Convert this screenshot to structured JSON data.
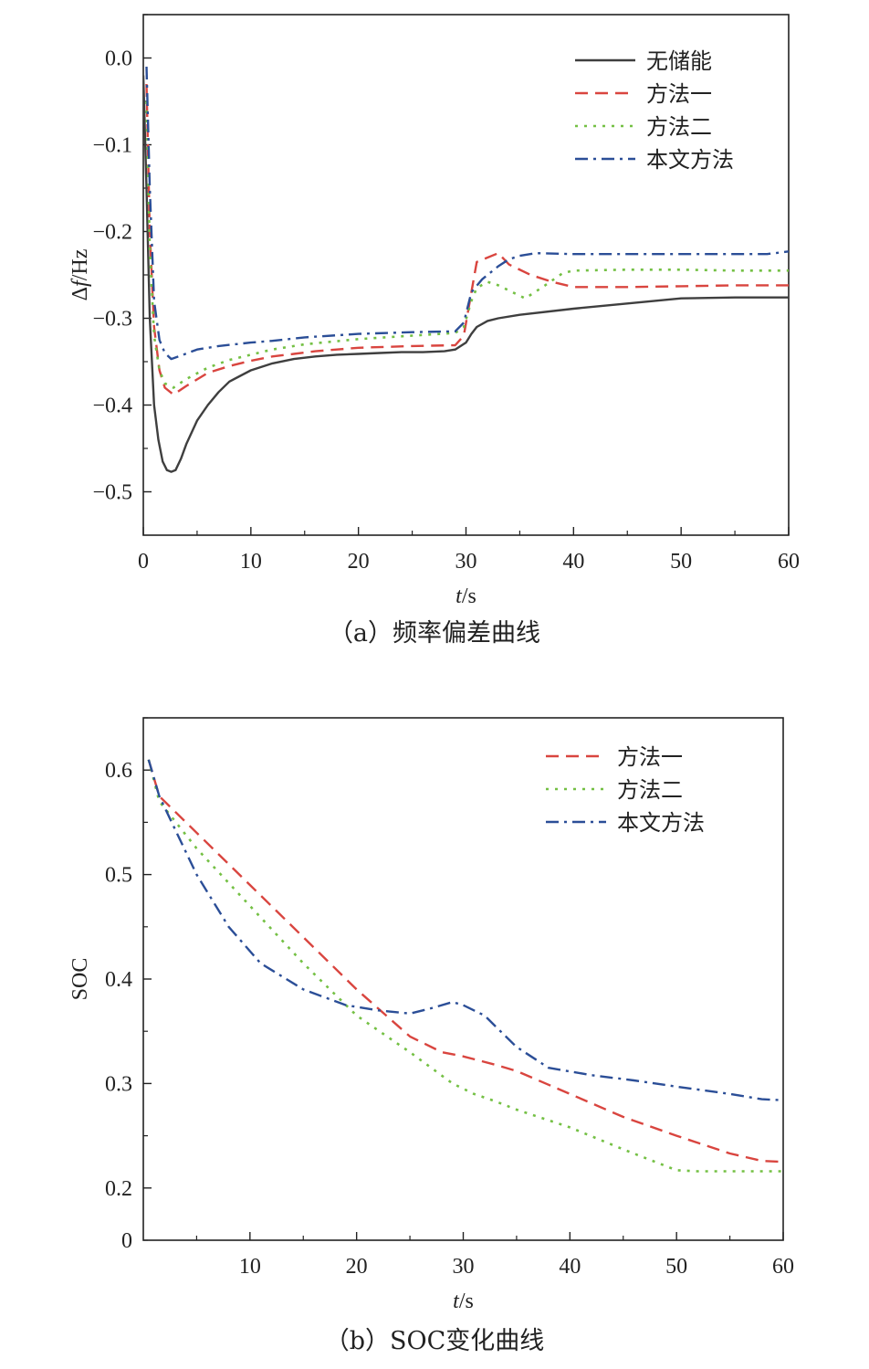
{
  "chart_data": [
    {
      "type": "line",
      "caption": "（a）频率偏差曲线",
      "xlabel_italic": "t",
      "xlabel_unit": "/s",
      "ylabel_prefix": "Δ",
      "ylabel_italic": "f",
      "ylabel_unit": "/Hz",
      "xlim": [
        0,
        60
      ],
      "ylim": [
        -0.55,
        0.05
      ],
      "xticks": [
        0,
        10,
        20,
        30,
        40,
        50,
        60
      ],
      "xtick_labels": [
        "0",
        "10",
        "20",
        "30",
        "40",
        "50",
        "60"
      ],
      "yticks": [
        0.0,
        -0.1,
        -0.2,
        -0.3,
        -0.4,
        -0.5
      ],
      "ytick_labels": [
        "0.0",
        "−0.1",
        "−0.2",
        "−0.3",
        "−0.4",
        "−0.5"
      ],
      "grid": false,
      "legend_position": "top-right",
      "series": [
        {
          "name": "无储能",
          "color": "#3f3f3f",
          "style": "solid",
          "x": [
            0,
            0.3,
            0.6,
            1.0,
            1.4,
            1.8,
            2.2,
            2.6,
            3.0,
            3.5,
            4.0,
            5.0,
            6.0,
            7.0,
            8.0,
            10.0,
            12.0,
            14.0,
            16.0,
            18.0,
            20.0,
            22.0,
            24.0,
            26.0,
            28.0,
            29.0,
            30.0,
            30.5,
            31.0,
            32.0,
            33.0,
            35.0,
            40.0,
            45.0,
            50.0,
            55.0,
            60.0
          ],
          "y": [
            -0.02,
            -0.15,
            -0.3,
            -0.4,
            -0.44,
            -0.465,
            -0.475,
            -0.477,
            -0.475,
            -0.462,
            -0.445,
            -0.418,
            -0.4,
            -0.385,
            -0.373,
            -0.36,
            -0.352,
            -0.347,
            -0.344,
            -0.342,
            -0.341,
            -0.34,
            -0.339,
            -0.339,
            -0.338,
            -0.336,
            -0.328,
            -0.318,
            -0.31,
            -0.303,
            -0.3,
            -0.296,
            -0.289,
            -0.283,
            -0.277,
            -0.276,
            -0.276
          ]
        },
        {
          "name": "方法一",
          "color": "#d9453f",
          "style": "dashed",
          "x": [
            0.3,
            0.6,
            1.0,
            1.5,
            2.0,
            2.8,
            4.0,
            6.0,
            8.0,
            10.0,
            12.0,
            14.0,
            16.0,
            18.0,
            20.0,
            25.0,
            29.0,
            29.8,
            30.5,
            31.0,
            33.0,
            34.0,
            36.0,
            38.0,
            40.0,
            45.0,
            50.0,
            55.0,
            60.0
          ],
          "y": [
            -0.03,
            -0.2,
            -0.31,
            -0.36,
            -0.38,
            -0.388,
            -0.378,
            -0.363,
            -0.355,
            -0.349,
            -0.344,
            -0.341,
            -0.338,
            -0.336,
            -0.334,
            -0.332,
            -0.331,
            -0.32,
            -0.27,
            -0.235,
            -0.225,
            -0.238,
            -0.25,
            -0.258,
            -0.264,
            -0.264,
            -0.263,
            -0.262,
            -0.262
          ]
        },
        {
          "name": "方法二",
          "color": "#74c044",
          "style": "dotted",
          "x": [
            0.3,
            0.6,
            1.0,
            1.5,
            2.0,
            2.8,
            4.0,
            6.0,
            8.0,
            10.0,
            12.0,
            15.0,
            20.0,
            25.0,
            29.0,
            29.8,
            30.5,
            31.0,
            32.0,
            33.0,
            35.5,
            37.0,
            39.0,
            40.0,
            45.0,
            50.0,
            55.0,
            60.0
          ],
          "y": [
            -0.05,
            -0.22,
            -0.32,
            -0.36,
            -0.375,
            -0.38,
            -0.37,
            -0.357,
            -0.348,
            -0.342,
            -0.336,
            -0.33,
            -0.324,
            -0.32,
            -0.317,
            -0.31,
            -0.28,
            -0.265,
            -0.258,
            -0.262,
            -0.277,
            -0.265,
            -0.248,
            -0.245,
            -0.244,
            -0.244,
            -0.245,
            -0.245
          ]
        },
        {
          "name": "本文方法",
          "color": "#2b4e97",
          "style": "dashdot",
          "x": [
            0.3,
            0.6,
            1.0,
            1.5,
            2.0,
            2.6,
            3.5,
            5.0,
            7.0,
            10.0,
            12.0,
            15.0,
            20.0,
            25.0,
            29.0,
            29.8,
            30.5,
            31.5,
            33.0,
            34.0,
            35.0,
            36.5,
            40.0,
            45.0,
            50.0,
            55.0,
            58.0,
            60.0
          ],
          "y": [
            -0.01,
            -0.15,
            -0.28,
            -0.325,
            -0.34,
            -0.347,
            -0.343,
            -0.336,
            -0.332,
            -0.328,
            -0.326,
            -0.322,
            -0.318,
            -0.316,
            -0.315,
            -0.305,
            -0.27,
            -0.255,
            -0.24,
            -0.232,
            -0.228,
            -0.225,
            -0.226,
            -0.226,
            -0.226,
            -0.226,
            -0.226,
            -0.223
          ]
        }
      ]
    },
    {
      "type": "line",
      "caption": "（b）SOC变化曲线",
      "xlabel_italic": "t",
      "xlabel_unit": "/s",
      "ylabel": "SOC",
      "xlim": [
        0,
        60
      ],
      "ylim": [
        0.15,
        0.65
      ],
      "xticks": [
        10,
        20,
        30,
        40,
        50,
        60
      ],
      "xtick_labels": [
        "10",
        "20",
        "30",
        "40",
        "50",
        "60"
      ],
      "yticks": [
        0.6,
        0.5,
        0.4,
        0.3,
        0.2
      ],
      "ytick_labels": [
        "0.6",
        "0.5",
        "0.4",
        "0.3",
        "0.2"
      ],
      "origin_label": "0",
      "grid": false,
      "legend_position": "top-right",
      "series": [
        {
          "name": "方法一",
          "color": "#d9453f",
          "style": "dashed",
          "x": [
            0.5,
            1.5,
            5,
            10,
            15,
            20,
            25,
            28,
            30,
            33,
            35,
            40,
            45,
            50,
            55,
            58,
            60
          ],
          "y": [
            0.61,
            0.575,
            0.54,
            0.49,
            0.44,
            0.39,
            0.345,
            0.33,
            0.326,
            0.318,
            0.312,
            0.29,
            0.268,
            0.25,
            0.233,
            0.226,
            0.225
          ]
        },
        {
          "name": "方法二",
          "color": "#74c044",
          "style": "dotted",
          "x": [
            0.5,
            1.5,
            5,
            10,
            15,
            20,
            25,
            29,
            31,
            33,
            35,
            40,
            45,
            50,
            52,
            55,
            58,
            60
          ],
          "y": [
            0.61,
            0.57,
            0.525,
            0.47,
            0.415,
            0.365,
            0.33,
            0.3,
            0.29,
            0.283,
            0.275,
            0.258,
            0.237,
            0.217,
            0.216,
            0.216,
            0.216,
            0.216
          ]
        },
        {
          "name": "本文方法",
          "color": "#2b4e97",
          "style": "dashdot",
          "x": [
            0.5,
            1.5,
            5,
            8,
            11,
            15,
            19,
            22,
            25,
            27,
            29,
            30,
            32,
            33,
            35,
            38,
            42,
            46,
            50,
            55,
            58,
            60
          ],
          "y": [
            0.61,
            0.575,
            0.5,
            0.45,
            0.415,
            0.39,
            0.375,
            0.37,
            0.367,
            0.372,
            0.378,
            0.375,
            0.365,
            0.355,
            0.335,
            0.315,
            0.308,
            0.303,
            0.297,
            0.29,
            0.285,
            0.284
          ]
        }
      ]
    }
  ]
}
